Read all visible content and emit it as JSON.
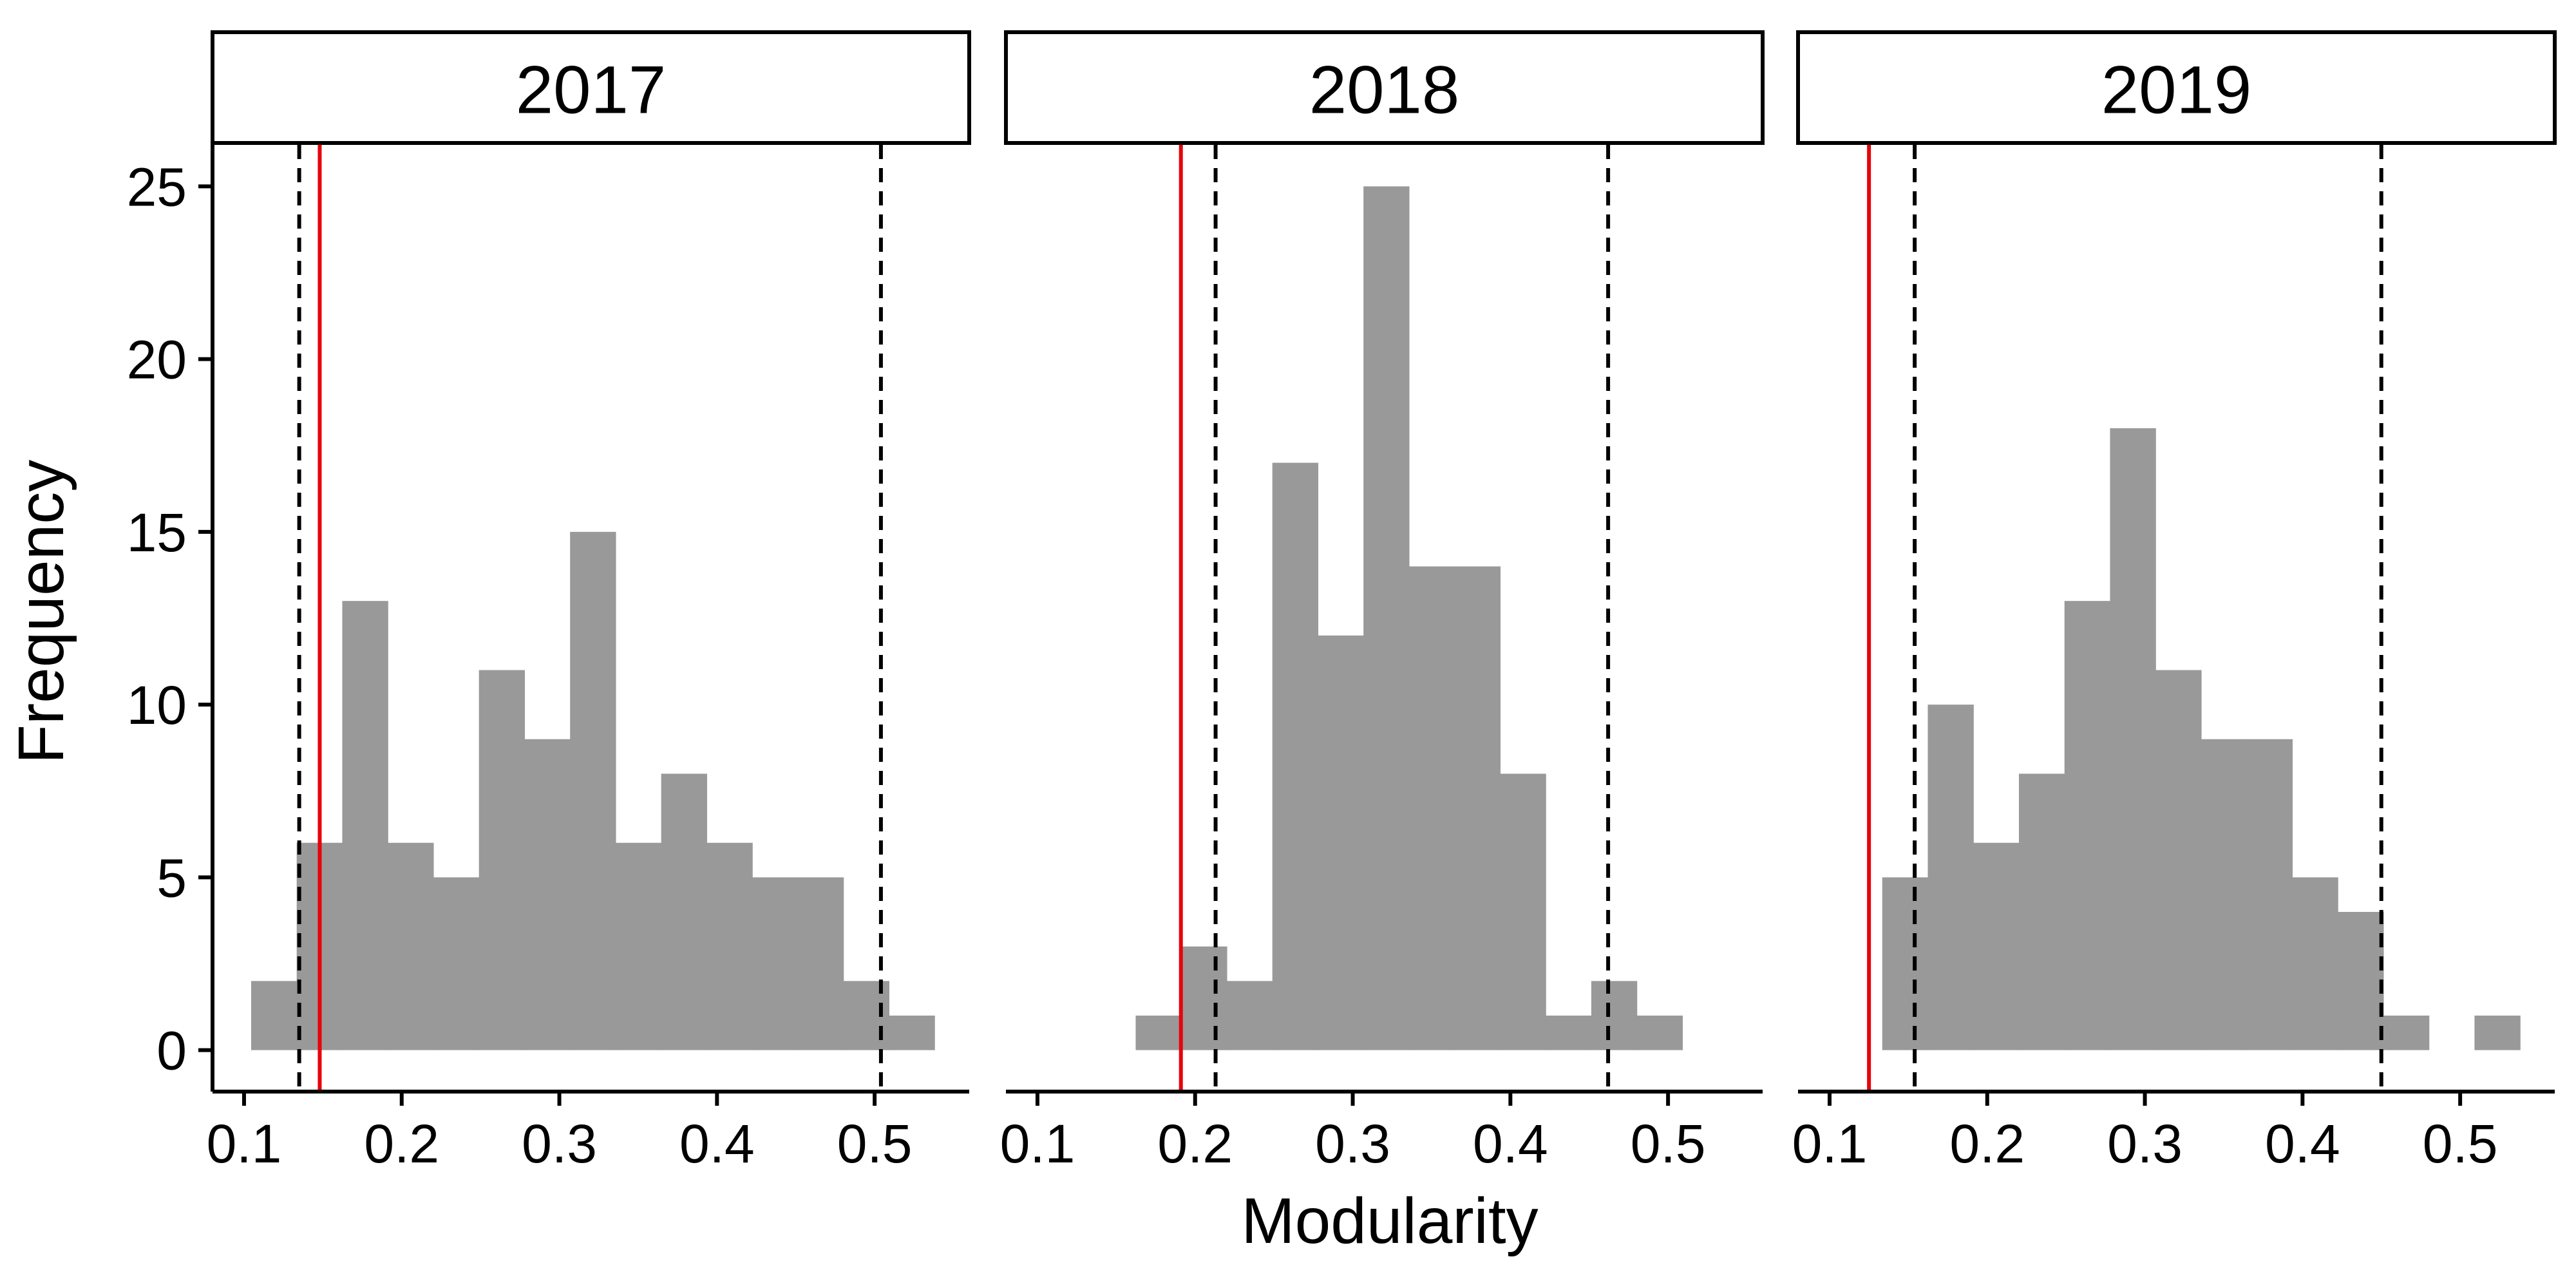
{
  "chart_data": {
    "type": "bar",
    "xlabel": "Modularity",
    "ylabel": "Frequency",
    "ylim": [
      -1.2,
      26.2
    ],
    "xlim": [
      0.08,
      0.56
    ],
    "y_ticks": [
      0,
      5,
      10,
      15,
      20,
      25
    ],
    "x_ticks": [
      0.1,
      0.2,
      0.3,
      0.4,
      0.5
    ],
    "bin_width": 0.0289,
    "bar_color": "#999999",
    "observed_line_color": "#e8000b",
    "interval_line_color": "#000000",
    "grid": false,
    "panels": [
      {
        "title": "2017",
        "observed": 0.148,
        "interval": [
          0.135,
          0.504
        ],
        "bins": [
          {
            "x": 0.1045,
            "y": 2
          },
          {
            "x": 0.1334,
            "y": 6
          },
          {
            "x": 0.1623,
            "y": 13
          },
          {
            "x": 0.1912,
            "y": 6
          },
          {
            "x": 0.2201,
            "y": 5
          },
          {
            "x": 0.249,
            "y": 11
          },
          {
            "x": 0.2779,
            "y": 9
          },
          {
            "x": 0.3068,
            "y": 15
          },
          {
            "x": 0.3357,
            "y": 6
          },
          {
            "x": 0.3646,
            "y": 8
          },
          {
            "x": 0.3935,
            "y": 6
          },
          {
            "x": 0.4224,
            "y": 5
          },
          {
            "x": 0.4513,
            "y": 5
          },
          {
            "x": 0.4802,
            "y": 2
          },
          {
            "x": 0.5091,
            "y": 1
          }
        ]
      },
      {
        "title": "2018",
        "observed": 0.191,
        "interval": [
          0.213,
          0.462
        ],
        "bins": [
          {
            "x": 0.1623,
            "y": 1
          },
          {
            "x": 0.1912,
            "y": 3
          },
          {
            "x": 0.2201,
            "y": 2
          },
          {
            "x": 0.249,
            "y": 17
          },
          {
            "x": 0.2779,
            "y": 12
          },
          {
            "x": 0.3068,
            "y": 25
          },
          {
            "x": 0.3357,
            "y": 14
          },
          {
            "x": 0.3646,
            "y": 14
          },
          {
            "x": 0.3935,
            "y": 8
          },
          {
            "x": 0.4224,
            "y": 1
          },
          {
            "x": 0.4513,
            "y": 2
          },
          {
            "x": 0.4802,
            "y": 1
          }
        ]
      },
      {
        "title": "2019",
        "observed": 0.125,
        "interval": [
          0.154,
          0.45
        ],
        "bins": [
          {
            "x": 0.1334,
            "y": 5
          },
          {
            "x": 0.1623,
            "y": 10
          },
          {
            "x": 0.1912,
            "y": 6
          },
          {
            "x": 0.2201,
            "y": 8
          },
          {
            "x": 0.249,
            "y": 13
          },
          {
            "x": 0.2779,
            "y": 18
          },
          {
            "x": 0.3068,
            "y": 11
          },
          {
            "x": 0.3357,
            "y": 9
          },
          {
            "x": 0.3646,
            "y": 9
          },
          {
            "x": 0.3935,
            "y": 5
          },
          {
            "x": 0.4224,
            "y": 4
          },
          {
            "x": 0.4513,
            "y": 1
          },
          {
            "x": 0.5091,
            "y": 1
          }
        ]
      }
    ]
  }
}
